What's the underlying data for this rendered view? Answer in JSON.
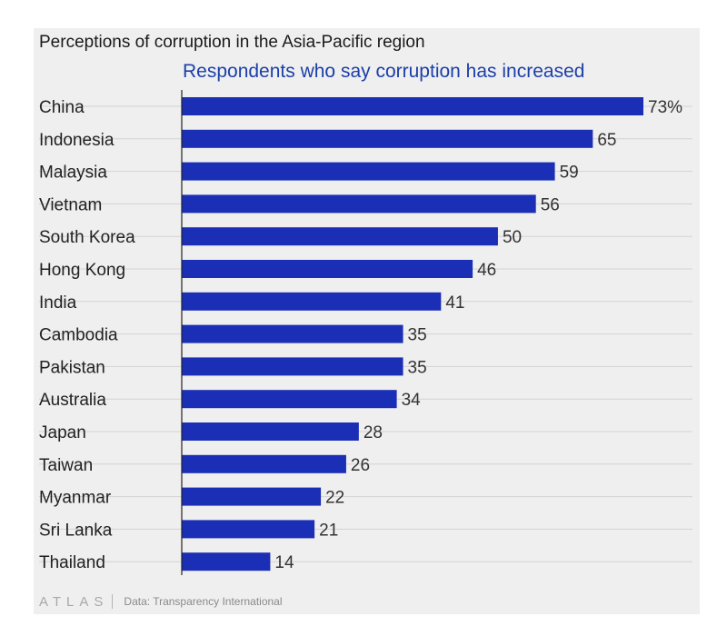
{
  "chart_data": {
    "type": "bar",
    "orientation": "horizontal",
    "title": "Perceptions of corruption in the Asia-Pacific region",
    "subtitle": "Respondents who say corruption has increased",
    "categories": [
      "China",
      "Indonesia",
      "Malaysia",
      "Vietnam",
      "South Korea",
      "Hong Kong",
      "India",
      "Cambodia",
      "Pakistan",
      "Australia",
      "Japan",
      "Taiwan",
      "Myanmar",
      "Sri Lanka",
      "Thailand"
    ],
    "values": [
      73,
      65,
      59,
      56,
      50,
      46,
      41,
      35,
      35,
      34,
      28,
      26,
      22,
      21,
      14
    ],
    "value_labels": [
      "73%",
      "65",
      "59",
      "56",
      "50",
      "46",
      "41",
      "35",
      "35",
      "34",
      "28",
      "26",
      "22",
      "21",
      "14"
    ],
    "unit": "%",
    "xlim": [
      0,
      73
    ],
    "grid": true,
    "bar_color": "#1a2fb5",
    "subtitle_color": "#1c3fa8"
  },
  "footer": {
    "brand": "ATLAS",
    "source": "Data: Transparency International"
  }
}
